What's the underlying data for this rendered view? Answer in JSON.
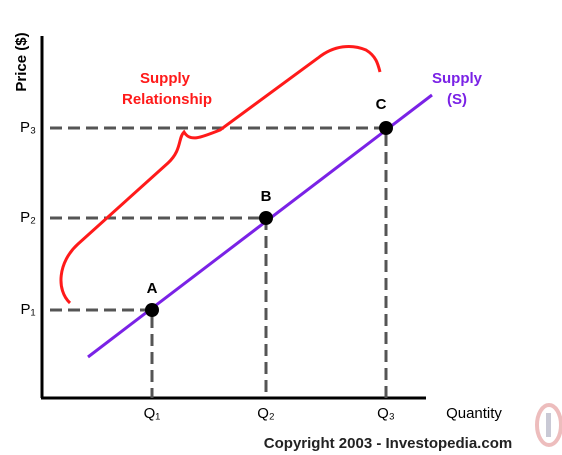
{
  "axes": {
    "y_label": "Price ($)",
    "x_label": "Quantity"
  },
  "price_levels": [
    "P₁",
    "P₂",
    "P₃"
  ],
  "quantity_levels": [
    "Q₁",
    "Q₂",
    "Q₃"
  ],
  "points": [
    "A",
    "B",
    "C"
  ],
  "annotation": {
    "line1": "Supply",
    "line2": "Relationship"
  },
  "curve_label": {
    "line1": "Supply",
    "line2": "(S)"
  },
  "copyright": "Copyright 2003 - Investopedia.com"
}
